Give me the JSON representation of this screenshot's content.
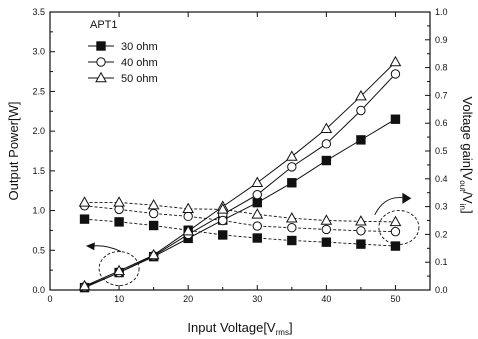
{
  "chart_data": {
    "type": "line",
    "legend_title": "APT1",
    "legend_placement": "top-left",
    "grid": false,
    "x_axis": {
      "label_main": "Input Voltage[V",
      "label_sub": "rms",
      "label_end": "]",
      "range": [
        0,
        55
      ],
      "ticks": [
        0,
        10,
        20,
        30,
        40,
        50
      ]
    },
    "y_left": {
      "label": "Output Power[W]",
      "range": [
        0,
        3.5
      ],
      "ticks": [
        0.0,
        0.5,
        1.0,
        1.5,
        2.0,
        2.5,
        3.0,
        3.5
      ],
      "tick_labels": [
        "0.0",
        "0.5",
        "1.0",
        "1.5",
        "2.0",
        "2.5",
        "3.0",
        "3.5"
      ]
    },
    "y_right": {
      "label_main": "Voltage gain[V",
      "label_sub1": "out",
      "label_mid": "/V",
      "label_sub2": "in",
      "label_end": "]",
      "range": [
        0,
        1.0
      ],
      "ticks": [
        0.0,
        0.1,
        0.2,
        0.3,
        0.4,
        0.5,
        0.6,
        0.7,
        0.8,
        0.9,
        1.0
      ],
      "tick_labels": [
        "0.0",
        "0.1",
        "0.2",
        "0.3",
        "0.4",
        "0.5",
        "0.6",
        "0.7",
        "0.8",
        "0.9",
        "1.0"
      ]
    },
    "x": [
      5,
      10,
      15,
      20,
      25,
      30,
      35,
      40,
      45,
      50
    ],
    "series": [
      {
        "name": "30 ohm",
        "marker": "square-filled",
        "power": [
          0.03,
          0.22,
          0.42,
          0.65,
          0.88,
          1.1,
          1.35,
          1.63,
          1.89,
          2.15
        ],
        "gain": [
          0.255,
          0.245,
          0.232,
          0.215,
          0.198,
          0.187,
          0.178,
          0.172,
          0.165,
          0.158
        ]
      },
      {
        "name": "40 ohm",
        "marker": "circle-open",
        "power": [
          0.04,
          0.22,
          0.43,
          0.7,
          0.95,
          1.2,
          1.55,
          1.84,
          2.26,
          2.72
        ],
        "gain": [
          0.303,
          0.29,
          0.275,
          0.265,
          0.25,
          0.23,
          0.224,
          0.218,
          0.213,
          0.21
        ]
      },
      {
        "name": "50 ohm",
        "marker": "triangle-open",
        "power": [
          0.05,
          0.24,
          0.44,
          0.74,
          1.05,
          1.35,
          1.68,
          2.03,
          2.44,
          2.87
        ],
        "gain": [
          0.315,
          0.315,
          0.305,
          0.292,
          0.29,
          0.272,
          0.258,
          0.25,
          0.247,
          0.245
        ]
      }
    ]
  }
}
